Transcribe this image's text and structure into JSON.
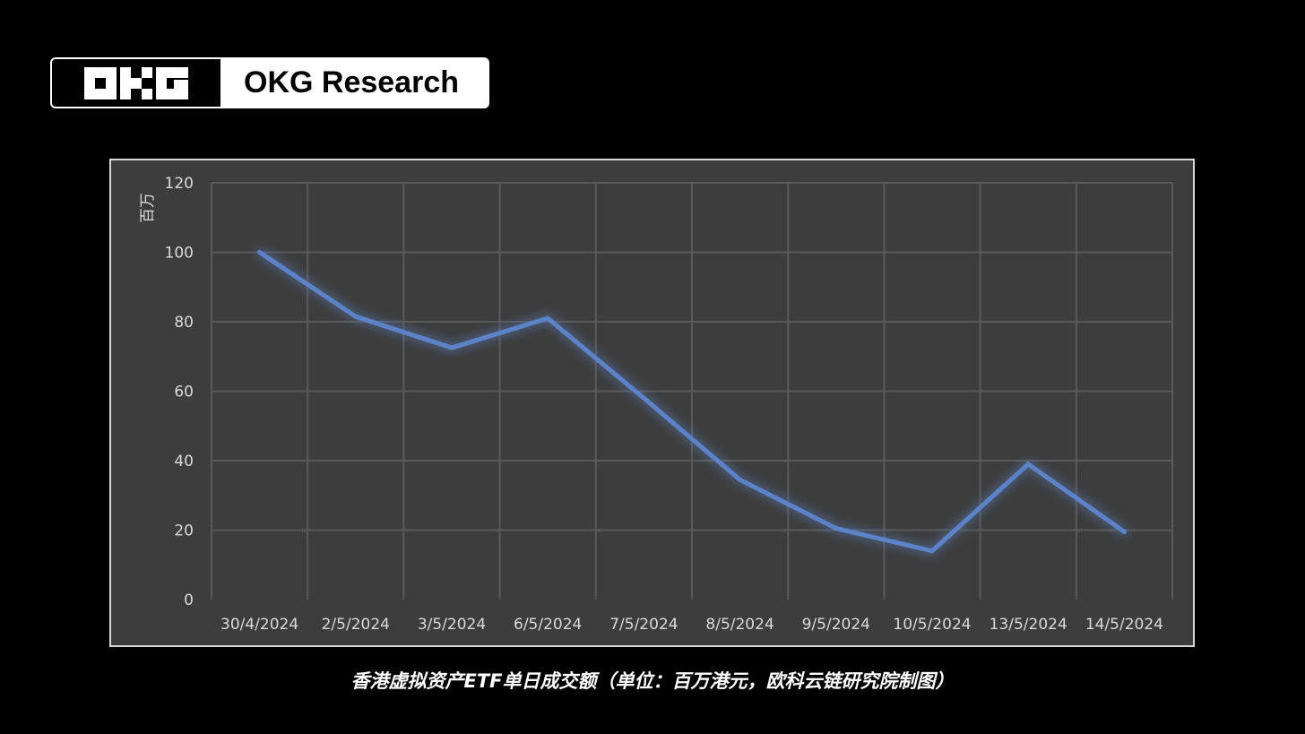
{
  "brand": {
    "name": "OKG Research"
  },
  "caption": "香港虚拟资产ETF单日成交额（单位：百万港元，欧科云链研究院制图）",
  "colors": {
    "background": "#000000",
    "plot_bg": "#3d3d3d",
    "grid": "#595959",
    "line": "#5b82c8",
    "tick_text": "#d9d9d9"
  },
  "chart_data": {
    "type": "line",
    "title": "",
    "xlabel": "",
    "ylabel": "百万",
    "ylim": [
      0,
      120
    ],
    "yticks": [
      0,
      20,
      40,
      60,
      80,
      100,
      120
    ],
    "categories": [
      "30/4/2024",
      "2/5/2024",
      "3/5/2024",
      "6/5/2024",
      "7/5/2024",
      "8/5/2024",
      "9/5/2024",
      "10/5/2024",
      "13/5/2024",
      "14/5/2024"
    ],
    "series": [
      {
        "values": [
          100,
          81.5,
          72.5,
          81,
          58,
          34.5,
          20.5,
          14,
          39,
          19.5
        ]
      }
    ],
    "grid": true,
    "legend": "none"
  }
}
